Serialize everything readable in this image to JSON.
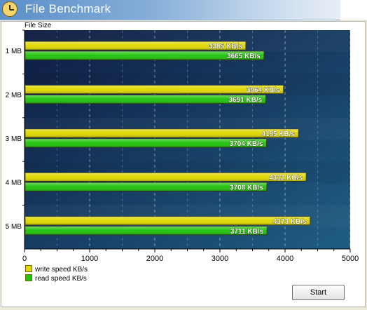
{
  "window": {
    "title": "File Benchmark"
  },
  "chart_data": {
    "type": "bar",
    "orientation": "horizontal",
    "ylabel": "File Size",
    "categories": [
      "1 MB",
      "2 MB",
      "3 MB",
      "4 MB",
      "5 MB"
    ],
    "series": [
      {
        "name": "write speed KB/s",
        "color": "#e0d800",
        "values": [
          3385,
          3964,
          4195,
          4312,
          4373
        ]
      },
      {
        "name": "read speed KB/s",
        "color": "#22c40e",
        "values": [
          3665,
          3691,
          3704,
          3708,
          3711
        ]
      }
    ],
    "xlim": [
      0,
      5000
    ],
    "xticks": [
      0,
      1000,
      2000,
      3000,
      4000,
      5000
    ],
    "value_suffix": " KB/s",
    "grid": true,
    "legend": "bottom-left"
  },
  "buttons": {
    "start": "Start"
  }
}
